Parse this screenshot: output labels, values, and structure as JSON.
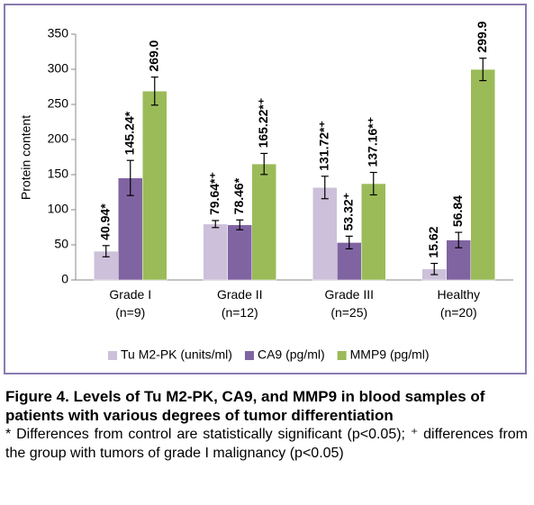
{
  "chart_data": {
    "type": "bar",
    "y_label": "Protein content",
    "categories": [
      "Grade I\n(n=9)",
      "Grade II\n(n=12)",
      "Grade III\n(n=25)",
      "Healthy\n(n=20)"
    ],
    "series": [
      {
        "name": "Tu M2-PK (units/ml)",
        "color": "#ccc0da",
        "values": [
          40.94,
          79.64,
          131.72,
          15.62
        ],
        "errors": [
          8,
          5,
          16,
          8
        ],
        "value_labels": [
          "40.94*",
          "79.64*⁺",
          "131.72*⁺",
          "15.62"
        ]
      },
      {
        "name": "CA9 (pg/ml)",
        "color": "#8064a2",
        "values": [
          145.24,
          78.46,
          53.32,
          56.84
        ],
        "errors": [
          25,
          7,
          9,
          11
        ],
        "value_labels": [
          "145.24*",
          "78.46*",
          "53.32⁺",
          "56.84"
        ]
      },
      {
        "name": "MMP9 (pg/ml)",
        "color": "#9bbb59",
        "values": [
          269.0,
          165.22,
          137.16,
          299.9
        ],
        "errors": [
          20,
          15,
          16,
          16
        ],
        "value_labels": [
          "269.0",
          "165.22*⁺",
          "137.16*⁺",
          "299.9"
        ]
      }
    ],
    "ylim": [
      0,
      350
    ],
    "yticks": [
      0,
      50,
      100,
      150,
      200,
      250,
      300,
      350
    ],
    "grid": false,
    "legend": "bottom"
  },
  "caption": {
    "title": "Figure 4. Levels of Tu M2-PK, CA9, and MMP9 in blood samples of patients with various degrees of tumor differentiation",
    "note": "* Differences from control are statistically significant (p<0.05); ⁺ differences from the group with tumors of grade I malignancy (p<0.05)"
  }
}
